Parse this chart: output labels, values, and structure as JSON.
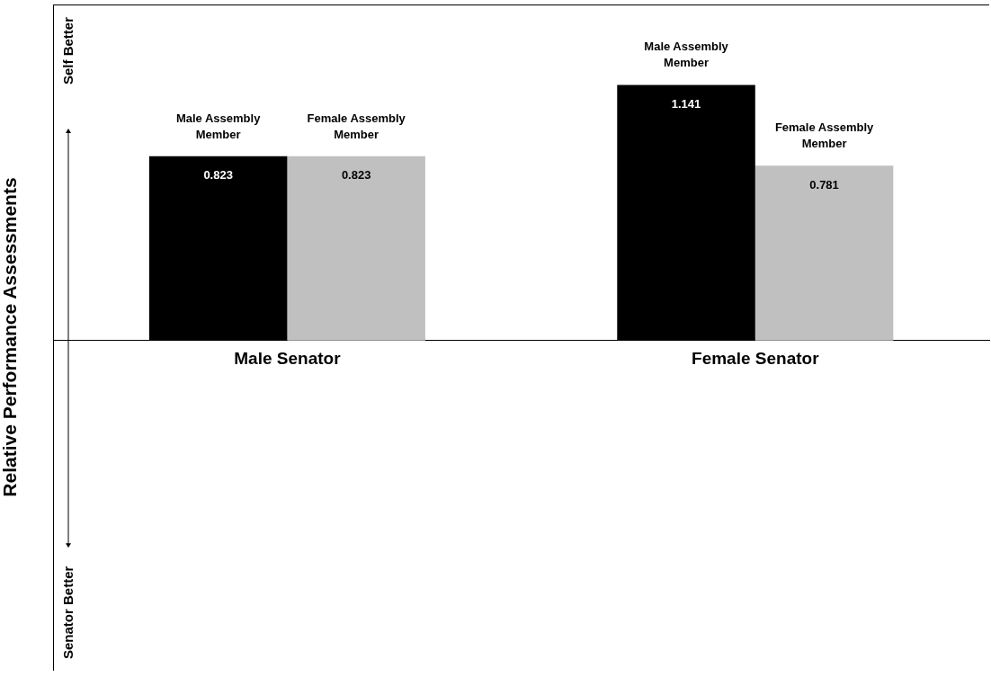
{
  "chart_data": {
    "type": "bar",
    "ylabel": "Relative Performance Assessments",
    "categories": [
      "Male Senator",
      "Female Senator"
    ],
    "series": [
      {
        "name": "Male Assembly Member",
        "color": "#000000",
        "values": [
          0.823,
          1.141
        ]
      },
      {
        "name": "Female Assembly Member",
        "color": "#c0c0c0",
        "values": [
          0.823,
          0.781
        ]
      }
    ],
    "ylim": [
      -1.47,
      1.5
    ],
    "tick_labels": "x",
    "data_labels": true,
    "grid": false,
    "legend": false,
    "annotations": [
      "Self Better",
      "Senator Better"
    ]
  }
}
